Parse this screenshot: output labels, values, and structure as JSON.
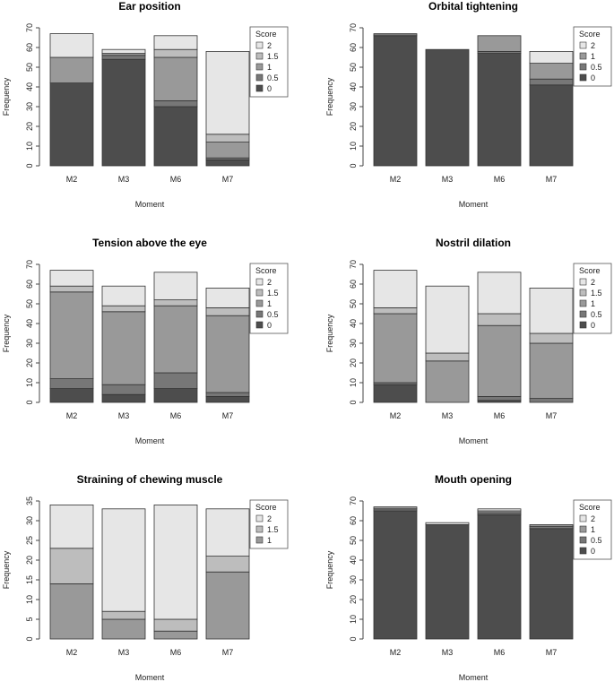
{
  "chart_data": [
    {
      "type": "bar",
      "stacked": true,
      "title": "Ear position",
      "xlabel": "Moment",
      "ylabel": "Frequency",
      "ylim": [
        0,
        70
      ],
      "yticks": [
        0,
        10,
        20,
        30,
        40,
        50,
        60,
        70
      ],
      "categories": [
        "M2",
        "M3",
        "M6",
        "M7"
      ],
      "legend_title": "Score",
      "series": [
        {
          "name": "0",
          "color": "#4d4d4d",
          "values": [
            42,
            54,
            30,
            3
          ]
        },
        {
          "name": "0.5",
          "color": "#777777",
          "values": [
            0,
            2,
            3,
            1
          ]
        },
        {
          "name": "1",
          "color": "#999999",
          "values": [
            13,
            1,
            22,
            8
          ]
        },
        {
          "name": "1.5",
          "color": "#bdbdbd",
          "values": [
            0,
            0,
            4,
            4
          ]
        },
        {
          "name": "2",
          "color": "#e6e6e6",
          "values": [
            12,
            2,
            7,
            42
          ]
        }
      ]
    },
    {
      "type": "bar",
      "stacked": true,
      "title": "Orbital tightening",
      "xlabel": "Moment",
      "ylabel": "Frequency",
      "ylim": [
        0,
        70
      ],
      "yticks": [
        0,
        10,
        20,
        30,
        40,
        50,
        60,
        70
      ],
      "categories": [
        "M2",
        "M3",
        "M6",
        "M7"
      ],
      "legend_title": "Score",
      "series": [
        {
          "name": "0",
          "color": "#4d4d4d",
          "values": [
            66,
            59,
            57,
            41
          ]
        },
        {
          "name": "0.5",
          "color": "#777777",
          "values": [
            1,
            0,
            1,
            3
          ]
        },
        {
          "name": "1",
          "color": "#999999",
          "values": [
            0,
            0,
            8,
            8
          ]
        },
        {
          "name": "2",
          "color": "#e6e6e6",
          "values": [
            0,
            0,
            0,
            6
          ]
        }
      ]
    },
    {
      "type": "bar",
      "stacked": true,
      "title": "Tension above the eye",
      "xlabel": "Moment",
      "ylabel": "Frequency",
      "ylim": [
        0,
        70
      ],
      "yticks": [
        0,
        10,
        20,
        30,
        40,
        50,
        60,
        70
      ],
      "categories": [
        "M2",
        "M3",
        "M6",
        "M7"
      ],
      "legend_title": "Score",
      "series": [
        {
          "name": "0",
          "color": "#4d4d4d",
          "values": [
            7,
            4,
            7,
            3
          ]
        },
        {
          "name": "0.5",
          "color": "#777777",
          "values": [
            5,
            5,
            8,
            2
          ]
        },
        {
          "name": "1",
          "color": "#999999",
          "values": [
            44,
            37,
            34,
            39
          ]
        },
        {
          "name": "1.5",
          "color": "#bdbdbd",
          "values": [
            3,
            3,
            3,
            4
          ]
        },
        {
          "name": "2",
          "color": "#e6e6e6",
          "values": [
            8,
            10,
            14,
            10
          ]
        }
      ]
    },
    {
      "type": "bar",
      "stacked": true,
      "title": "Nostril dilation",
      "xlabel": "Moment",
      "ylabel": "Frequency",
      "ylim": [
        0,
        70
      ],
      "yticks": [
        0,
        10,
        20,
        30,
        40,
        50,
        60,
        70
      ],
      "categories": [
        "M2",
        "M3",
        "M6",
        "M7"
      ],
      "legend_title": "Score",
      "series": [
        {
          "name": "0",
          "color": "#4d4d4d",
          "values": [
            9,
            0,
            1,
            0
          ]
        },
        {
          "name": "0.5",
          "color": "#777777",
          "values": [
            1,
            0,
            2,
            2
          ]
        },
        {
          "name": "1",
          "color": "#999999",
          "values": [
            35,
            21,
            36,
            28
          ]
        },
        {
          "name": "1.5",
          "color": "#bdbdbd",
          "values": [
            3,
            4,
            6,
            5
          ]
        },
        {
          "name": "2",
          "color": "#e6e6e6",
          "values": [
            19,
            34,
            21,
            23
          ]
        }
      ]
    },
    {
      "type": "bar",
      "stacked": true,
      "title": "Straining of chewing muscle",
      "xlabel": "Moment",
      "ylabel": "Frequency",
      "ylim": [
        0,
        35
      ],
      "yticks": [
        0,
        5,
        10,
        15,
        20,
        25,
        30,
        35
      ],
      "categories": [
        "M2",
        "M3",
        "M6",
        "M7"
      ],
      "legend_title": "Score",
      "series": [
        {
          "name": "1",
          "color": "#999999",
          "values": [
            14,
            5,
            2,
            17
          ]
        },
        {
          "name": "1.5",
          "color": "#bdbdbd",
          "values": [
            9,
            2,
            3,
            4
          ]
        },
        {
          "name": "2",
          "color": "#e6e6e6",
          "values": [
            11,
            26,
            29,
            12
          ]
        }
      ]
    },
    {
      "type": "bar",
      "stacked": true,
      "title": "Mouth opening",
      "xlabel": "Moment",
      "ylabel": "Frequency",
      "ylim": [
        0,
        70
      ],
      "yticks": [
        0,
        10,
        20,
        30,
        40,
        50,
        60,
        70
      ],
      "categories": [
        "M2",
        "M3",
        "M6",
        "M7"
      ],
      "legend_title": "Score",
      "series": [
        {
          "name": "0",
          "color": "#4d4d4d",
          "values": [
            65,
            58,
            63,
            56
          ]
        },
        {
          "name": "0.5",
          "color": "#777777",
          "values": [
            1,
            0,
            1,
            1
          ]
        },
        {
          "name": "1",
          "color": "#999999",
          "values": [
            1,
            0,
            1,
            1
          ]
        },
        {
          "name": "2",
          "color": "#e6e6e6",
          "values": [
            0,
            1,
            1,
            0
          ]
        }
      ]
    }
  ]
}
